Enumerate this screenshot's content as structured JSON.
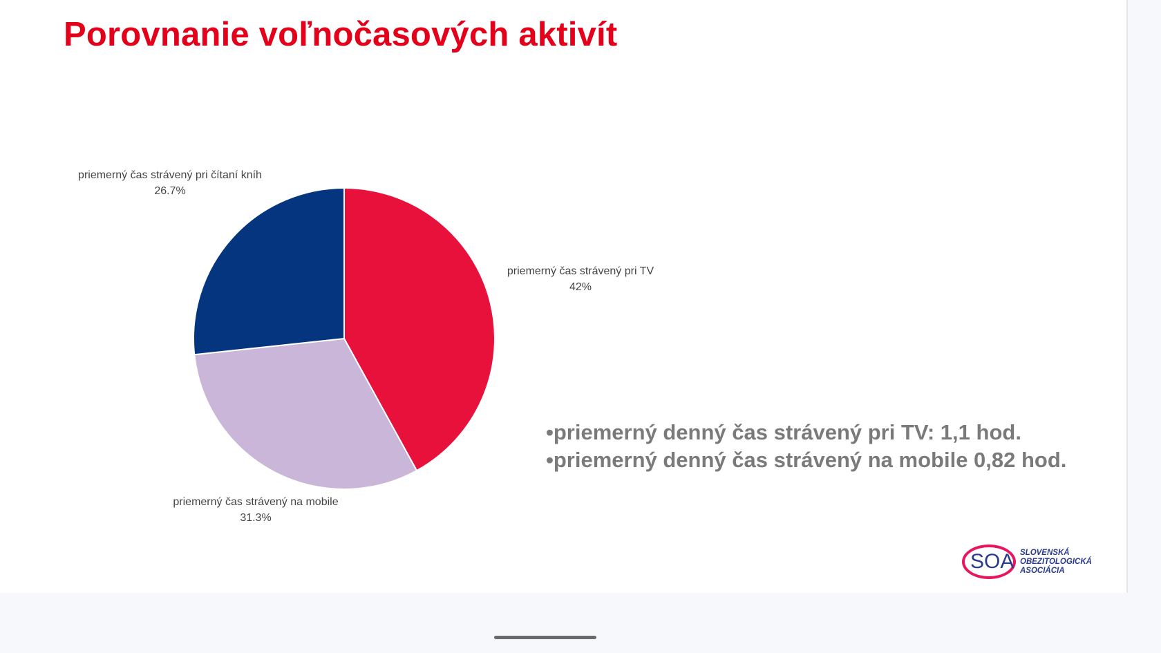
{
  "slide": {
    "title": "Porovnanie voľnočasových aktivít",
    "bullets": [
      "priemerný denný čas strávený pri TV: 1,1 hod.",
      "priemerný denný čas strávený na mobile 0,82 hod."
    ]
  },
  "chart_data": {
    "type": "pie",
    "start_angle": "12 o'clock, clockwise",
    "slices": [
      {
        "label": "priemerný čas strávený pri TV",
        "value_label": "42%",
        "value": 42.0,
        "color": "#e8113c"
      },
      {
        "label": "priemerný čas strávený na mobile",
        "value_label": "31.3%",
        "value": 31.3,
        "color": "#c9b6d8"
      },
      {
        "label": "priemerný čas strávený pri čítaní kníh",
        "value_label": "26.7%",
        "value": 26.7,
        "color": "#05357f"
      }
    ]
  },
  "logo": {
    "mark": "SOA",
    "lines": [
      "SLOVENSKÁ",
      "OBEZITOLOGICKÁ",
      "ASOCIÁCIA"
    ]
  }
}
